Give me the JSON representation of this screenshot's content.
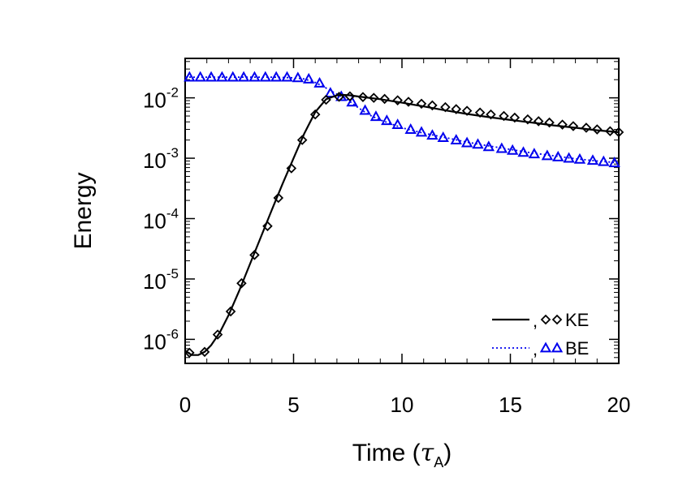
{
  "chart_data": {
    "type": "line",
    "xlabel": "Time (",
    "xlabel_symbol": "τ",
    "xlabel_subscript": "A",
    "xlabel_close": ")",
    "ylabel": "Energy",
    "xlim": [
      0,
      20
    ],
    "ylim": [
      4e-07,
      0.045
    ],
    "yscale": "log",
    "x_ticks": [
      {
        "value": 0,
        "label": "0"
      },
      {
        "value": 5,
        "label": "5"
      },
      {
        "value": 10,
        "label": "10"
      },
      {
        "value": 15,
        "label": "15"
      },
      {
        "value": 20,
        "label": "20"
      }
    ],
    "y_ticks": [
      {
        "value": 1e-06,
        "base": "10",
        "exp": "-6"
      },
      {
        "value": 1e-05,
        "base": "10",
        "exp": "-5"
      },
      {
        "value": 0.0001,
        "base": "10",
        "exp": "-4"
      },
      {
        "value": 0.001,
        "base": "10",
        "exp": "-3"
      },
      {
        "value": 0.01,
        "base": "10",
        "exp": "-2"
      }
    ],
    "grid": false,
    "legend_position": "bottom-right",
    "series": [
      {
        "name": "KE",
        "legend_prefix": ",",
        "color": "#000000",
        "line_style": "solid",
        "marker": "diamond",
        "line": {
          "x": [
            0,
            0.3,
            0.6,
            0.9,
            1.2,
            1.6,
            2.0,
            2.5,
            3.0,
            3.5,
            4.0,
            4.5,
            5.0,
            5.5,
            6.0,
            6.5,
            7.0,
            7.3,
            7.6,
            8.0,
            9.0,
            10.0,
            11.0,
            12.0,
            13.0,
            14.0,
            15.0,
            16.0,
            17.0,
            18.0,
            19.0,
            20.0
          ],
          "y": [
            6.5e-07,
            5.5e-07,
            5.5e-07,
            6.2e-07,
            8e-07,
            1.3e-06,
            2.5e-06,
            6.5e-06,
            1.8e-05,
            5e-05,
            0.00014,
            0.00038,
            0.001,
            0.0026,
            0.0058,
            0.0095,
            0.011,
            0.0112,
            0.011,
            0.0105,
            0.0095,
            0.0083,
            0.0072,
            0.0062,
            0.0054,
            0.0048,
            0.0043,
            0.0039,
            0.0035,
            0.0032,
            0.0029,
            0.0027
          ]
        },
        "markers": {
          "x": [
            0.2,
            0.9,
            1.5,
            2.1,
            2.6,
            3.2,
            3.8,
            4.3,
            4.9,
            5.4,
            6.0,
            6.5,
            7.1,
            7.6,
            8.2,
            8.7,
            9.2,
            9.8,
            10.3,
            10.9,
            11.4,
            12.0,
            12.5,
            13.0,
            13.6,
            14.1,
            14.7,
            15.2,
            15.8,
            16.3,
            16.8,
            17.4,
            17.9,
            18.5,
            19.0,
            19.6,
            20.0
          ],
          "y": [
            6e-07,
            6.2e-07,
            1.2e-06,
            2.9e-06,
            8.5e-06,
            2.5e-05,
            7.5e-05,
            0.00022,
            0.00068,
            0.002,
            0.0053,
            0.0093,
            0.0104,
            0.0106,
            0.0103,
            0.01,
            0.0096,
            0.0091,
            0.0086,
            0.008,
            0.0075,
            0.007,
            0.0065,
            0.0061,
            0.0057,
            0.0053,
            0.005,
            0.0047,
            0.0044,
            0.0041,
            0.0039,
            0.0036,
            0.0034,
            0.0032,
            0.003,
            0.0028,
            0.0027
          ]
        }
      },
      {
        "name": "BE",
        "legend_prefix": ",",
        "color": "#0000ee",
        "line_style": "dotted",
        "marker": "triangle",
        "line": {
          "x": [
            0,
            1,
            2,
            3,
            4,
            5,
            5.5,
            6.0,
            6.5,
            7.0,
            7.5,
            8.0,
            8.5,
            9.0,
            10,
            11,
            12,
            13,
            14,
            15,
            16,
            17,
            18,
            19,
            20
          ],
          "y": [
            0.022,
            0.022,
            0.022,
            0.022,
            0.022,
            0.0215,
            0.0205,
            0.018,
            0.0145,
            0.0115,
            0.0092,
            0.0068,
            0.0052,
            0.0043,
            0.0032,
            0.0026,
            0.0022,
            0.00185,
            0.0016,
            0.0014,
            0.00122,
            0.0011,
            0.00098,
            0.0009,
            0.00084
          ]
        },
        "markers": {
          "x": [
            0.2,
            0.7,
            1.2,
            1.7,
            2.2,
            2.7,
            3.2,
            3.7,
            4.2,
            4.7,
            5.2,
            5.7,
            6.2,
            6.7,
            7.2,
            7.7,
            8.3,
            8.8,
            9.3,
            9.8,
            10.4,
            10.9,
            11.4,
            11.9,
            12.5,
            13.0,
            13.5,
            14.0,
            14.6,
            15.1,
            15.6,
            16.1,
            16.7,
            17.2,
            17.7,
            18.2,
            18.8,
            19.3,
            19.8
          ],
          "y": [
            0.022,
            0.022,
            0.022,
            0.022,
            0.022,
            0.022,
            0.022,
            0.022,
            0.022,
            0.022,
            0.0215,
            0.0205,
            0.0175,
            0.012,
            0.0105,
            0.0085,
            0.0062,
            0.0049,
            0.0042,
            0.0036,
            0.003,
            0.0027,
            0.0024,
            0.0022,
            0.002,
            0.0018,
            0.0017,
            0.00155,
            0.00145,
            0.00135,
            0.00125,
            0.00118,
            0.0011,
            0.00105,
            0.001,
            0.00096,
            0.00092,
            0.00088,
            0.00084
          ]
        }
      }
    ]
  }
}
